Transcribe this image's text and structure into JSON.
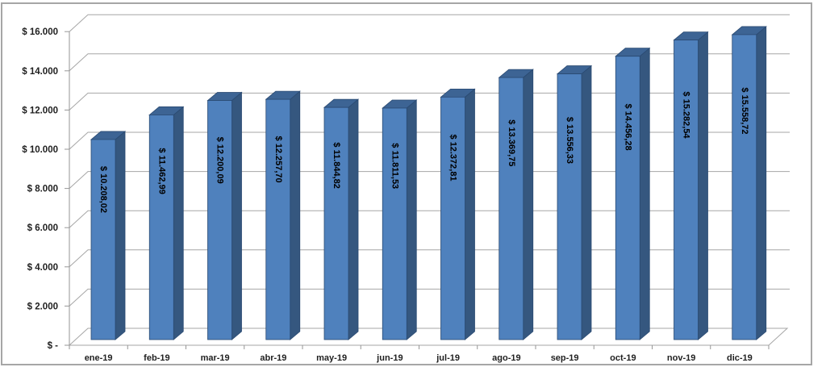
{
  "chart_data": {
    "type": "bar",
    "variant": "3d-clustered-column",
    "title": "",
    "xlabel": "",
    "ylabel": "",
    "categories": [
      "ene-19",
      "feb-19",
      "mar-19",
      "abr-19",
      "may-19",
      "jun-19",
      "jul-19",
      "ago-19",
      "sep-19",
      "oct-19",
      "nov-19",
      "dic-19"
    ],
    "values": [
      10208.02,
      11462.99,
      12200.09,
      12257.7,
      11844.82,
      11811.53,
      12372.81,
      13369.75,
      13556.33,
      14456.28,
      15282.54,
      15558.72
    ],
    "bar_labels": [
      "$ 10.208,02",
      "$ 11.462,99",
      "$ 12.200,09",
      "$ 12.257,70",
      "$ 11.844,82",
      "$ 11.811,53",
      "$ 12.372,81",
      "$ 13.369,75",
      "$ 13.556,33",
      "$ 14.456,28",
      "$ 15.282,54",
      "$ 15.558,72"
    ],
    "ylim": [
      0,
      16000
    ],
    "y_tick_step": 2000,
    "y_tick_labels": [
      "$ -",
      "$ 2.000",
      "$ 4.000",
      "$ 6.000",
      "$ 8.000",
      "$ 10.000",
      "$ 12.000",
      "$ 14.000",
      "$ 16.000"
    ],
    "grid": true,
    "legend": "none",
    "colors": {
      "bar_front": "#4f81bd",
      "bar_side": "#35577f",
      "bar_top": "#3d6494",
      "bar_outline": "#2a4a72",
      "gridline": "#a6a6a6",
      "axis": "#969696",
      "value_label_text": "#000000",
      "tick_text": "#1f1f1f",
      "frame_border": "#a6a6a6",
      "background": "#ffffff"
    }
  }
}
